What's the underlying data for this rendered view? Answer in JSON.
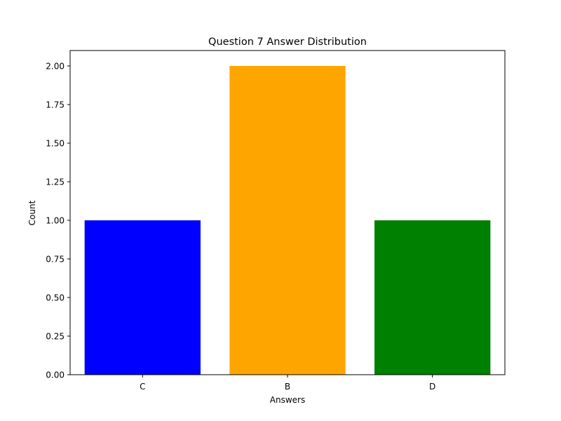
{
  "chart_data": {
    "type": "bar",
    "title": "Question 7 Answer Distribution",
    "xlabel": "Answers",
    "ylabel": "Count",
    "categories": [
      "C",
      "B",
      "D"
    ],
    "values": [
      1,
      2,
      1
    ],
    "colors": [
      "#0000ff",
      "#ffa500",
      "#008000"
    ],
    "ylim": [
      0,
      2.1
    ],
    "yticks": [
      "0.00",
      "0.25",
      "0.50",
      "0.75",
      "1.00",
      "1.25",
      "1.50",
      "1.75",
      "2.00"
    ],
    "grid": false,
    "legend": "none"
  }
}
